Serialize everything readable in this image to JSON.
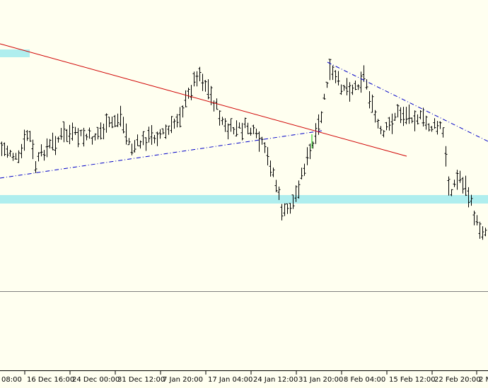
{
  "x_axis": {
    "labels": [
      "08:00",
      "16 Dec 16:00",
      "24 Dec 00:00",
      "31 Dec 12:00",
      "7 Jan 20:00",
      "17 Jan 04:00",
      "24 Jan 12:00",
      "31 Jan 20:00",
      "8 Feb 04:00",
      "15 Feb 12:00",
      "22 Feb 20:00",
      "2 M"
    ]
  }
}
